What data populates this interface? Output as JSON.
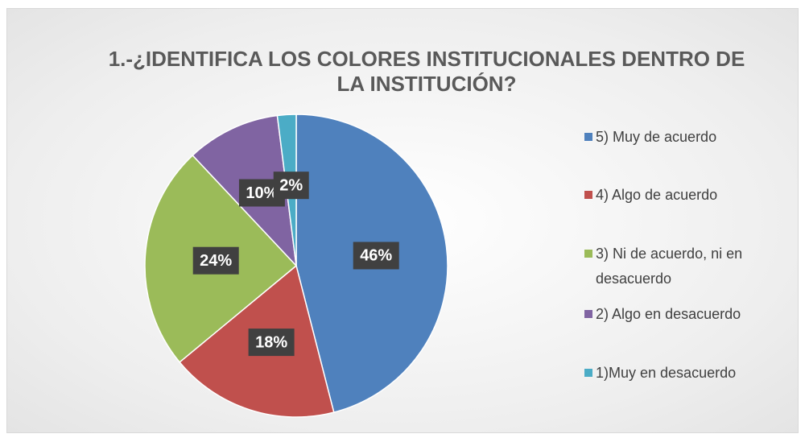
{
  "chart_data": {
    "type": "pie",
    "title": "1.-¿IDENTIFICA LOS COLORES INSTITUCIONALES DENTRO DE LA INSTITUCIÓN?",
    "categories": [
      "5) Muy de acuerdo",
      "4) Algo de acuerdo",
      "3) Ni de acuerdo, ni en desacuerdo",
      "2) Algo en desacuerdo",
      "1)Muy en desacuerdo"
    ],
    "values": [
      46,
      18,
      24,
      10,
      2
    ],
    "value_labels": [
      "46%",
      "18%",
      "24%",
      "10%",
      "2%"
    ],
    "colors": [
      "#4f81bd",
      "#c0504d",
      "#9bbb59",
      "#8064a2",
      "#4bacc6"
    ],
    "legend": "right"
  }
}
